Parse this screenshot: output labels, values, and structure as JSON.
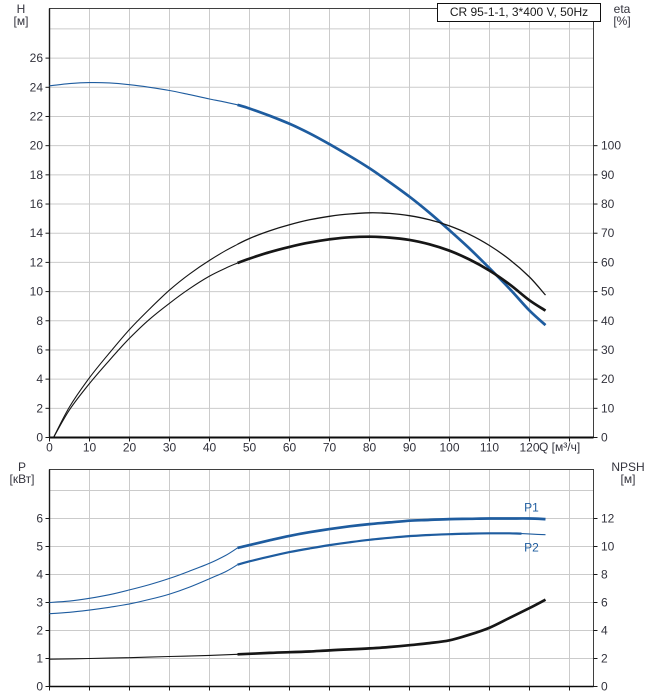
{
  "labels": {
    "title": "CR 95-1-1, 3*400 V, 50Hz",
    "h_name": "H",
    "h_unit": "[м]",
    "eta_name": "eta",
    "eta_unit": "[%]",
    "q_unit": "Q [м³/ч]",
    "p_name": "P",
    "p_unit": "[кВт]",
    "npsh_name": "NPSH",
    "npsh_unit": "[м]",
    "p1": "P1",
    "p2": "P2"
  },
  "colors": {
    "blue": "#1e5c9f",
    "black": "#161616",
    "grid": "#cbcbcb",
    "frame": "#3f3f3f",
    "text": "#33333d"
  },
  "chart_data": [
    {
      "type": "line",
      "title": "CR 95-1-1, 3*400 V, 50Hz",
      "xlabel": "Q [м³/ч]",
      "ylabel_left": "H [м]",
      "ylabel_right": "eta [%]",
      "xlim": [
        0,
        136
      ],
      "ylim_left": [
        0,
        29.4
      ],
      "ylim_right": [
        0,
        147
      ],
      "grid": true,
      "x_tick_labels": [
        0,
        10,
        20,
        30,
        40,
        50,
        60,
        70,
        80,
        90,
        100,
        110,
        120
      ],
      "x_grid": [
        10,
        20,
        30,
        40,
        50,
        60,
        70,
        80,
        90,
        100,
        110,
        120,
        130
      ],
      "y_ticks_left": [
        0,
        2,
        4,
        6,
        8,
        10,
        12,
        14,
        16,
        18,
        20,
        22,
        24,
        26
      ],
      "y_grid_left": [
        2,
        4,
        6,
        8,
        10,
        12,
        14,
        16,
        18,
        20,
        22,
        24,
        26,
        28
      ],
      "y_ticks_right": [
        0,
        10,
        20,
        30,
        40,
        50,
        60,
        70,
        80,
        90,
        100
      ],
      "series": [
        {
          "name": "head-curve",
          "axis": "left",
          "color": "blue",
          "points": [
            [
              0,
              24.1
            ],
            [
              5,
              24.25
            ],
            [
              10,
              24.32
            ],
            [
              15,
              24.3
            ],
            [
              20,
              24.18
            ],
            [
              25,
              24.0
            ],
            [
              30,
              23.78
            ],
            [
              35,
              23.5
            ],
            [
              40,
              23.2
            ],
            [
              44,
              22.98
            ],
            [
              47,
              22.8
            ],
            [
              50,
              22.55
            ],
            [
              55,
              22.05
            ],
            [
              60,
              21.5
            ],
            [
              65,
              20.85
            ],
            [
              70,
              20.1
            ],
            [
              75,
              19.3
            ],
            [
              80,
              18.45
            ],
            [
              85,
              17.5
            ],
            [
              90,
              16.5
            ],
            [
              95,
              15.4
            ],
            [
              100,
              14.2
            ],
            [
              105,
              12.95
            ],
            [
              110,
              11.6
            ],
            [
              115,
              10.2
            ],
            [
              120,
              8.7
            ],
            [
              124,
              7.7
            ]
          ],
          "segments": [
            {
              "from": 0,
              "to": 47,
              "width": 1.1
            },
            {
              "from": 47,
              "to": 124,
              "width": 2.7
            }
          ]
        },
        {
          "name": "eta-pump-curve",
          "axis": "right",
          "color": "black",
          "points": [
            [
              1,
              0
            ],
            [
              5,
              10.5
            ],
            [
              10,
              20.5
            ],
            [
              15,
              29
            ],
            [
              20,
              37
            ],
            [
              25,
              44
            ],
            [
              30,
              50.5
            ],
            [
              35,
              56
            ],
            [
              40,
              60.7
            ],
            [
              44,
              64
            ],
            [
              47,
              66.2
            ],
            [
              50,
              68.2
            ],
            [
              55,
              70.8
            ],
            [
              60,
              72.9
            ],
            [
              65,
              74.6
            ],
            [
              70,
              75.8
            ],
            [
              75,
              76.6
            ],
            [
              80,
              77
            ],
            [
              85,
              76.8
            ],
            [
              90,
              76
            ],
            [
              95,
              74.6
            ],
            [
              100,
              72.5
            ],
            [
              105,
              69.6
            ],
            [
              110,
              65.8
            ],
            [
              115,
              61
            ],
            [
              120,
              55
            ],
            [
              124,
              48.8
            ]
          ],
          "segments": [
            {
              "from": 1,
              "to": 47,
              "width": 1.1
            },
            {
              "from": 47,
              "to": 124,
              "width": 1.3
            }
          ]
        },
        {
          "name": "eta-total-curve",
          "axis": "right",
          "color": "black",
          "points": [
            [
              1,
              0
            ],
            [
              5,
              9.5
            ],
            [
              10,
              18.5
            ],
            [
              15,
              26.5
            ],
            [
              20,
              34
            ],
            [
              25,
              40.5
            ],
            [
              30,
              46
            ],
            [
              35,
              51
            ],
            [
              40,
              55.3
            ],
            [
              44,
              58
            ],
            [
              47,
              59.8
            ],
            [
              50,
              61.3
            ],
            [
              55,
              63.5
            ],
            [
              60,
              65.3
            ],
            [
              65,
              66.8
            ],
            [
              70,
              67.9
            ],
            [
              75,
              68.6
            ],
            [
              80,
              68.8
            ],
            [
              85,
              68.5
            ],
            [
              90,
              67.7
            ],
            [
              95,
              66.2
            ],
            [
              100,
              64
            ],
            [
              105,
              61
            ],
            [
              110,
              57.2
            ],
            [
              115,
              52.5
            ],
            [
              120,
              47
            ],
            [
              124,
              43.5
            ]
          ],
          "segments": [
            {
              "from": 1,
              "to": 47,
              "width": 1.1
            },
            {
              "from": 47,
              "to": 124,
              "width": 2.7
            }
          ]
        }
      ]
    },
    {
      "type": "line",
      "title": "",
      "xlabel": "",
      "ylabel_left": "P [кВт]",
      "ylabel_right": "NPSH [м]",
      "xlim": [
        0,
        136
      ],
      "ylim_left": [
        0,
        7.75
      ],
      "ylim_right": [
        0,
        15.5
      ],
      "grid": true,
      "x_tick_labels": [],
      "x_grid": [
        10,
        20,
        30,
        40,
        50,
        60,
        70,
        80,
        90,
        100,
        110,
        120,
        130
      ],
      "y_ticks_left": [
        0,
        1,
        2,
        3,
        4,
        5,
        6
      ],
      "y_grid_left": [
        1,
        2,
        3,
        4,
        5,
        6,
        7
      ],
      "y_ticks_right": [
        0,
        2,
        4,
        6,
        8,
        10,
        12
      ],
      "series": [
        {
          "name": "p1-curve",
          "axis": "left",
          "color": "blue",
          "points": [
            [
              0,
              3.0
            ],
            [
              5,
              3.05
            ],
            [
              10,
              3.15
            ],
            [
              15,
              3.28
            ],
            [
              20,
              3.45
            ],
            [
              25,
              3.64
            ],
            [
              30,
              3.86
            ],
            [
              35,
              4.12
            ],
            [
              40,
              4.4
            ],
            [
              44,
              4.68
            ],
            [
              47,
              4.95
            ],
            [
              50,
              5.05
            ],
            [
              55,
              5.22
            ],
            [
              60,
              5.38
            ],
            [
              65,
              5.51
            ],
            [
              70,
              5.62
            ],
            [
              75,
              5.72
            ],
            [
              80,
              5.8
            ],
            [
              85,
              5.86
            ],
            [
              90,
              5.92
            ],
            [
              95,
              5.95
            ],
            [
              100,
              5.98
            ],
            [
              105,
              5.99
            ],
            [
              110,
              6.0
            ],
            [
              115,
              6.0
            ],
            [
              120,
              6.0
            ],
            [
              124,
              5.98
            ]
          ],
          "segments": [
            {
              "from": 0,
              "to": 47,
              "width": 1.1
            },
            {
              "from": 47,
              "to": 124,
              "width": 2.7
            }
          ]
        },
        {
          "name": "p2-curve",
          "axis": "left",
          "color": "blue",
          "points": [
            [
              0,
              2.6
            ],
            [
              5,
              2.65
            ],
            [
              10,
              2.73
            ],
            [
              15,
              2.83
            ],
            [
              20,
              2.95
            ],
            [
              25,
              3.11
            ],
            [
              30,
              3.3
            ],
            [
              35,
              3.55
            ],
            [
              40,
              3.85
            ],
            [
              44,
              4.1
            ],
            [
              47,
              4.35
            ],
            [
              50,
              4.47
            ],
            [
              55,
              4.64
            ],
            [
              60,
              4.8
            ],
            [
              65,
              4.93
            ],
            [
              70,
              5.05
            ],
            [
              75,
              5.15
            ],
            [
              80,
              5.24
            ],
            [
              85,
              5.31
            ],
            [
              90,
              5.37
            ],
            [
              95,
              5.41
            ],
            [
              100,
              5.44
            ],
            [
              105,
              5.46
            ],
            [
              110,
              5.47
            ],
            [
              115,
              5.47
            ],
            [
              118,
              5.46
            ],
            [
              121,
              5.44
            ],
            [
              124,
              5.42
            ]
          ],
          "segments": [
            {
              "from": 0,
              "to": 47,
              "width": 1.1
            },
            {
              "from": 47,
              "to": 118,
              "width": 2.2
            },
            {
              "from": 118,
              "to": 124,
              "width": 1.1
            }
          ]
        },
        {
          "name": "npsh-curve",
          "axis": "right",
          "color": "black",
          "points": [
            [
              0,
              1.95
            ],
            [
              10,
              2.0
            ],
            [
              20,
              2.06
            ],
            [
              30,
              2.14
            ],
            [
              40,
              2.22
            ],
            [
              47,
              2.3
            ],
            [
              55,
              2.4
            ],
            [
              60,
              2.45
            ],
            [
              65,
              2.5
            ],
            [
              70,
              2.58
            ],
            [
              75,
              2.65
            ],
            [
              80,
              2.72
            ],
            [
              85,
              2.82
            ],
            [
              90,
              2.95
            ],
            [
              95,
              3.1
            ],
            [
              100,
              3.3
            ],
            [
              105,
              3.7
            ],
            [
              110,
              4.2
            ],
            [
              115,
              4.9
            ],
            [
              120,
              5.6
            ],
            [
              124,
              6.2
            ]
          ],
          "segments": [
            {
              "from": 0,
              "to": 47,
              "width": 1.1
            },
            {
              "from": 47,
              "to": 124,
              "width": 2.7
            }
          ]
        }
      ],
      "curve_labels": [
        {
          "text": "P1",
          "q": 120.5,
          "v": 6.25
        },
        {
          "text": "P2",
          "q": 120.5,
          "v": 4.82
        }
      ]
    }
  ]
}
